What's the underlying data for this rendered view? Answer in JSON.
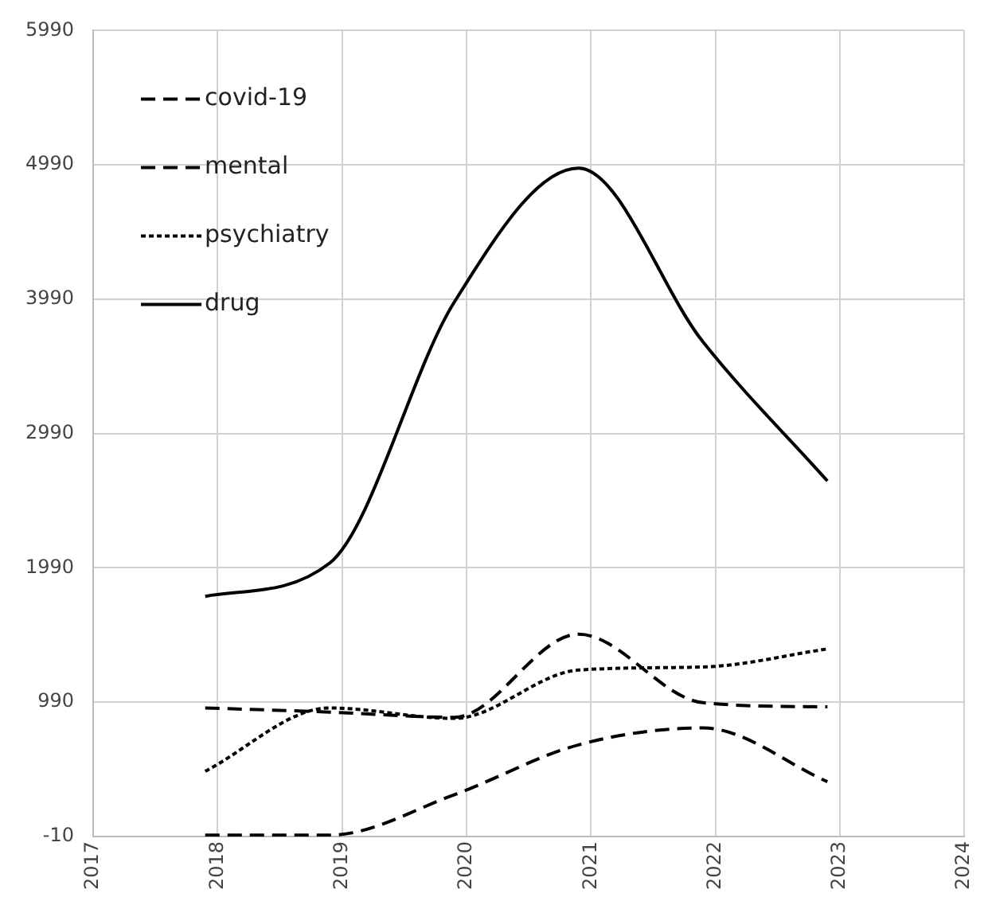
{
  "chart_data": {
    "type": "line",
    "x": [
      2017.9,
      2018.9,
      2019.9,
      2020.9,
      2021.9,
      2022.9
    ],
    "series": [
      {
        "name": "covid-19",
        "color": "#000000",
        "line_style": "dashed",
        "values": [
          0,
          0,
          300,
          672,
          798,
          398
        ]
      },
      {
        "name": "mental",
        "color": "#000000",
        "line_style": "dashed",
        "values": [
          947,
          916,
          877,
          1496,
          986,
          955
        ]
      },
      {
        "name": "psychiatry",
        "color": "#000000",
        "line_style": "dotted",
        "values": [
          476,
          947,
          869,
          1229,
          1252,
          1386
        ]
      },
      {
        "name": "drug",
        "color": "#000000",
        "line_style": "solid",
        "values": [
          1778,
          2025,
          3966,
          4966,
          3672,
          2637
        ]
      }
    ],
    "xlim": [
      2017,
      2024
    ],
    "xticks": [
      2017,
      2018,
      2019,
      2020,
      2021,
      2022,
      2023,
      2024
    ],
    "ylim": [
      -10,
      5990
    ],
    "yticks": [
      -10,
      990,
      1990,
      2990,
      3990,
      4990,
      5990
    ],
    "grid": true,
    "legend": "top left",
    "marker": "none"
  }
}
